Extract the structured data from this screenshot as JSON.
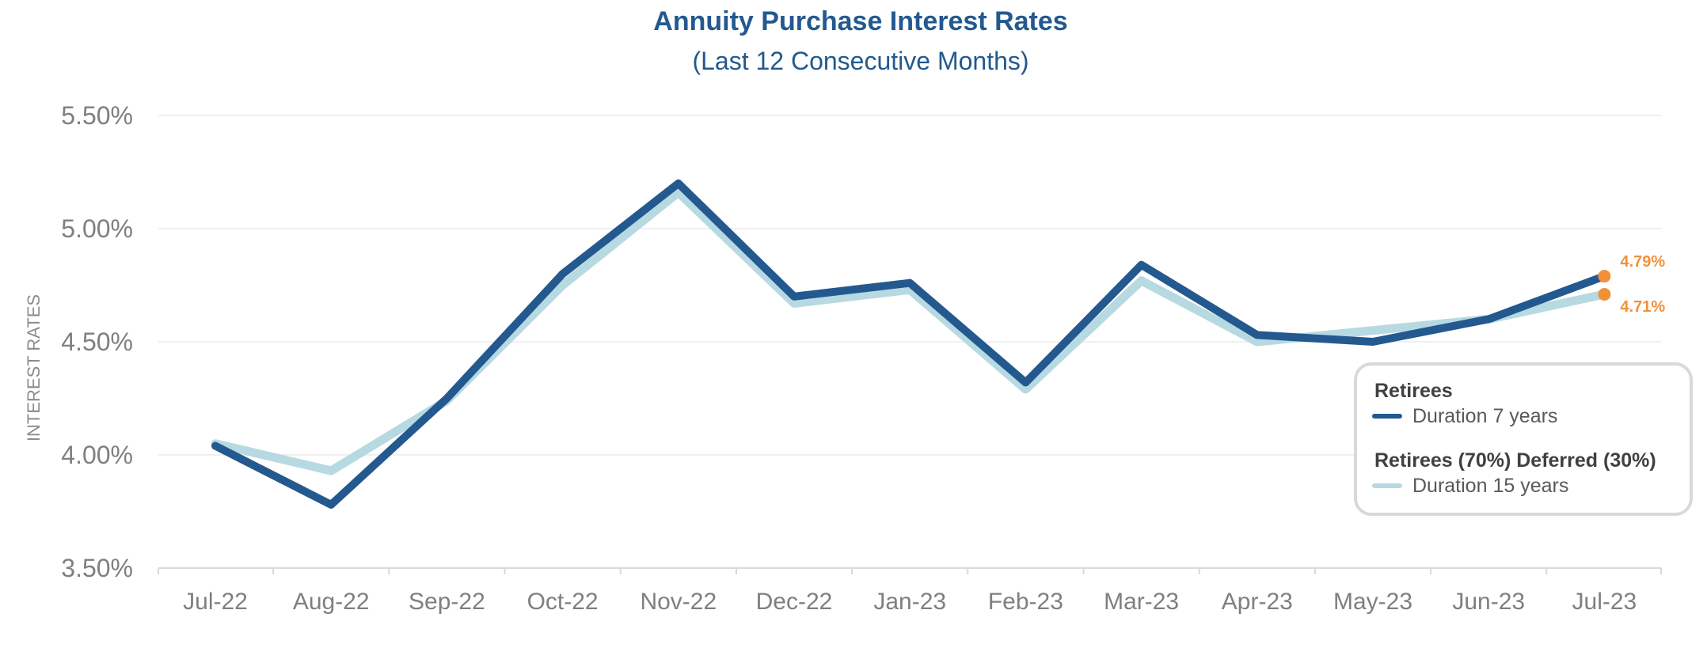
{
  "chart_data": {
    "type": "line",
    "title": "Annuity Purchase Interest Rates",
    "subtitle": "(Last 12 Consecutive Months)",
    "xlabel": "",
    "ylabel": "INTEREST RATES",
    "categories": [
      "Jul-22",
      "Aug-22",
      "Sep-22",
      "Oct-22",
      "Nov-22",
      "Dec-22",
      "Jan-23",
      "Feb-23",
      "Mar-23",
      "Apr-23",
      "May-23",
      "Jun-23",
      "Jul-23"
    ],
    "ylim": [
      3.5,
      5.5
    ],
    "yticks": [
      3.5,
      4.0,
      4.5,
      5.0,
      5.5
    ],
    "ytick_labels": [
      "3.50%",
      "4.00%",
      "4.50%",
      "5.00%",
      "5.50%"
    ],
    "grid": true,
    "legend_position": "right",
    "series": [
      {
        "group": "Retirees",
        "name": "Duration 7 years",
        "color": "#23598f",
        "values": [
          4.04,
          3.78,
          4.25,
          4.8,
          5.2,
          4.7,
          4.76,
          4.32,
          4.84,
          4.53,
          4.5,
          4.6,
          4.79
        ],
        "end_label": "4.79%"
      },
      {
        "group": "Retirees (70%) Deferred (30%)",
        "name": "Duration 15 years",
        "color": "#b7d9e2",
        "values": [
          4.05,
          3.93,
          4.24,
          4.75,
          5.16,
          4.67,
          4.73,
          4.29,
          4.77,
          4.5,
          4.55,
          4.6,
          4.71
        ],
        "end_label": "4.71%"
      }
    ],
    "end_marker_color": "#f0913a"
  }
}
